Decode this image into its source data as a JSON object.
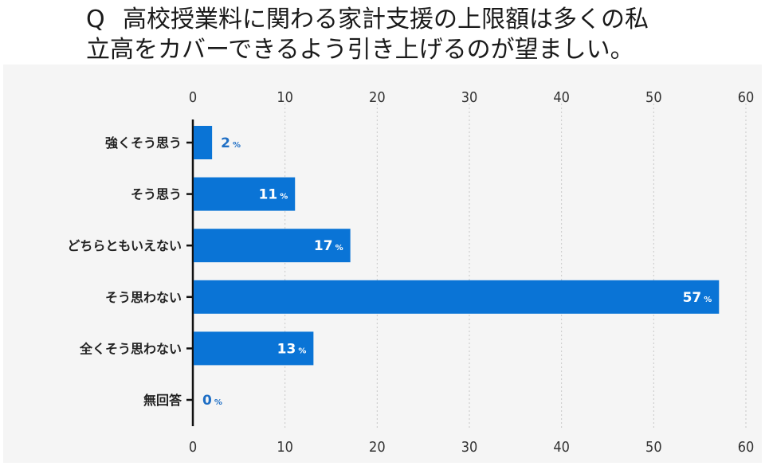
{
  "title": {
    "prefix": "Q",
    "line1": "高校授業料に関わる家計支援の上限額は多くの私",
    "line2": "立高をカバーできるよう引き上げるのが望ましい。"
  },
  "chart_data": {
    "type": "bar",
    "orientation": "horizontal",
    "categories": [
      "強くそう思う",
      "そう思う",
      "どちらともいえない",
      "そう思わない",
      "全くそう思わない",
      "無回答"
    ],
    "values": [
      2,
      11,
      17,
      57,
      13,
      0
    ],
    "value_suffix": "%",
    "xlim": [
      0,
      60
    ],
    "xticks": [
      0,
      10,
      20,
      30,
      40,
      50,
      60
    ],
    "grid": true,
    "bar_color": "#0a74d6"
  }
}
